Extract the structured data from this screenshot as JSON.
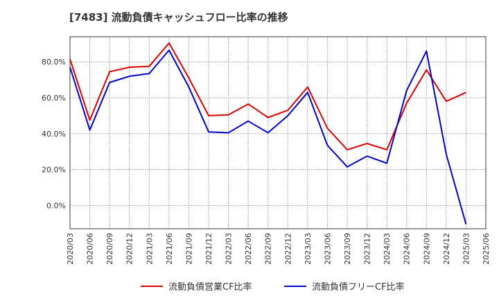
{
  "chart_data": {
    "type": "line",
    "title": "[7483]  流動負債キャッシュフロー比率の推移",
    "xlabel": "",
    "ylabel": "",
    "categories": [
      "2020/03",
      "2020/06",
      "2020/09",
      "2020/12",
      "2021/03",
      "2021/06",
      "2021/09",
      "2021/12",
      "2022/03",
      "2022/06",
      "2022/09",
      "2022/12",
      "2023/03",
      "2023/06",
      "2023/09",
      "2023/12",
      "2024/03",
      "2024/06",
      "2024/09",
      "2024/12",
      "2025/03",
      "2025/06"
    ],
    "y_ticks": [
      "0.0%",
      "20.0%",
      "40.0%",
      "60.0%",
      "80.0%"
    ],
    "ylim": [
      -13,
      94
    ],
    "grid": true,
    "legend_position": "bottom",
    "series": [
      {
        "name": "流動負債営業CF比率",
        "color": "#dd0000",
        "values": [
          81.5,
          47.5,
          74.5,
          77,
          77.5,
          90.5,
          71,
          50,
          50.5,
          56.5,
          49,
          53,
          66,
          43,
          31,
          34.5,
          31,
          57,
          75.5,
          58,
          63,
          null
        ]
      },
      {
        "name": "流動負債フリーCF比率",
        "color": "#0000cc",
        "values": [
          77,
          42,
          68.5,
          72,
          73.5,
          86.5,
          66,
          41,
          40.5,
          47,
          40.5,
          50,
          63,
          33.5,
          21.5,
          27.5,
          23.5,
          64,
          86,
          28.5,
          -10.5,
          null
        ]
      }
    ]
  }
}
